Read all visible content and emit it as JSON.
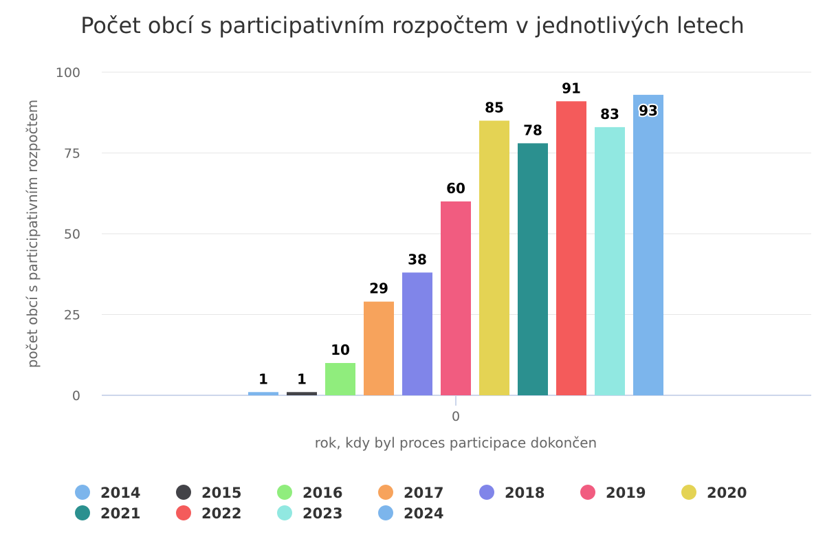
{
  "chart_data": {
    "type": "bar",
    "title": "Počet obcí s participativním rozpočtem v jednotlivých letech",
    "xlabel": "rok, kdy byl proces participace dokončen",
    "ylabel": "počet obcí s participativním rozpočtem",
    "categories": [
      "0"
    ],
    "ylim": [
      0,
      100
    ],
    "yticks": [
      "0",
      "25",
      "50",
      "75",
      "100"
    ],
    "grid": true,
    "legend_placement": "bottom",
    "series": [
      {
        "name": "2014",
        "values": [
          1
        ],
        "color": "#7cb5ec"
      },
      {
        "name": "2015",
        "values": [
          1
        ],
        "color": "#434348"
      },
      {
        "name": "2016",
        "values": [
          10
        ],
        "color": "#90ed7d"
      },
      {
        "name": "2017",
        "values": [
          29
        ],
        "color": "#f7a35c"
      },
      {
        "name": "2018",
        "values": [
          38
        ],
        "color": "#8085e9"
      },
      {
        "name": "2019",
        "values": [
          60
        ],
        "color": "#f15c80"
      },
      {
        "name": "2020",
        "values": [
          85
        ],
        "color": "#e4d354"
      },
      {
        "name": "2021",
        "values": [
          78
        ],
        "color": "#2b908f"
      },
      {
        "name": "2022",
        "values": [
          91
        ],
        "color": "#f45b5b"
      },
      {
        "name": "2023",
        "values": [
          83
        ],
        "color": "#91e8e1"
      },
      {
        "name": "2024",
        "values": [
          93
        ],
        "color": "#7cb5ec"
      }
    ]
  }
}
